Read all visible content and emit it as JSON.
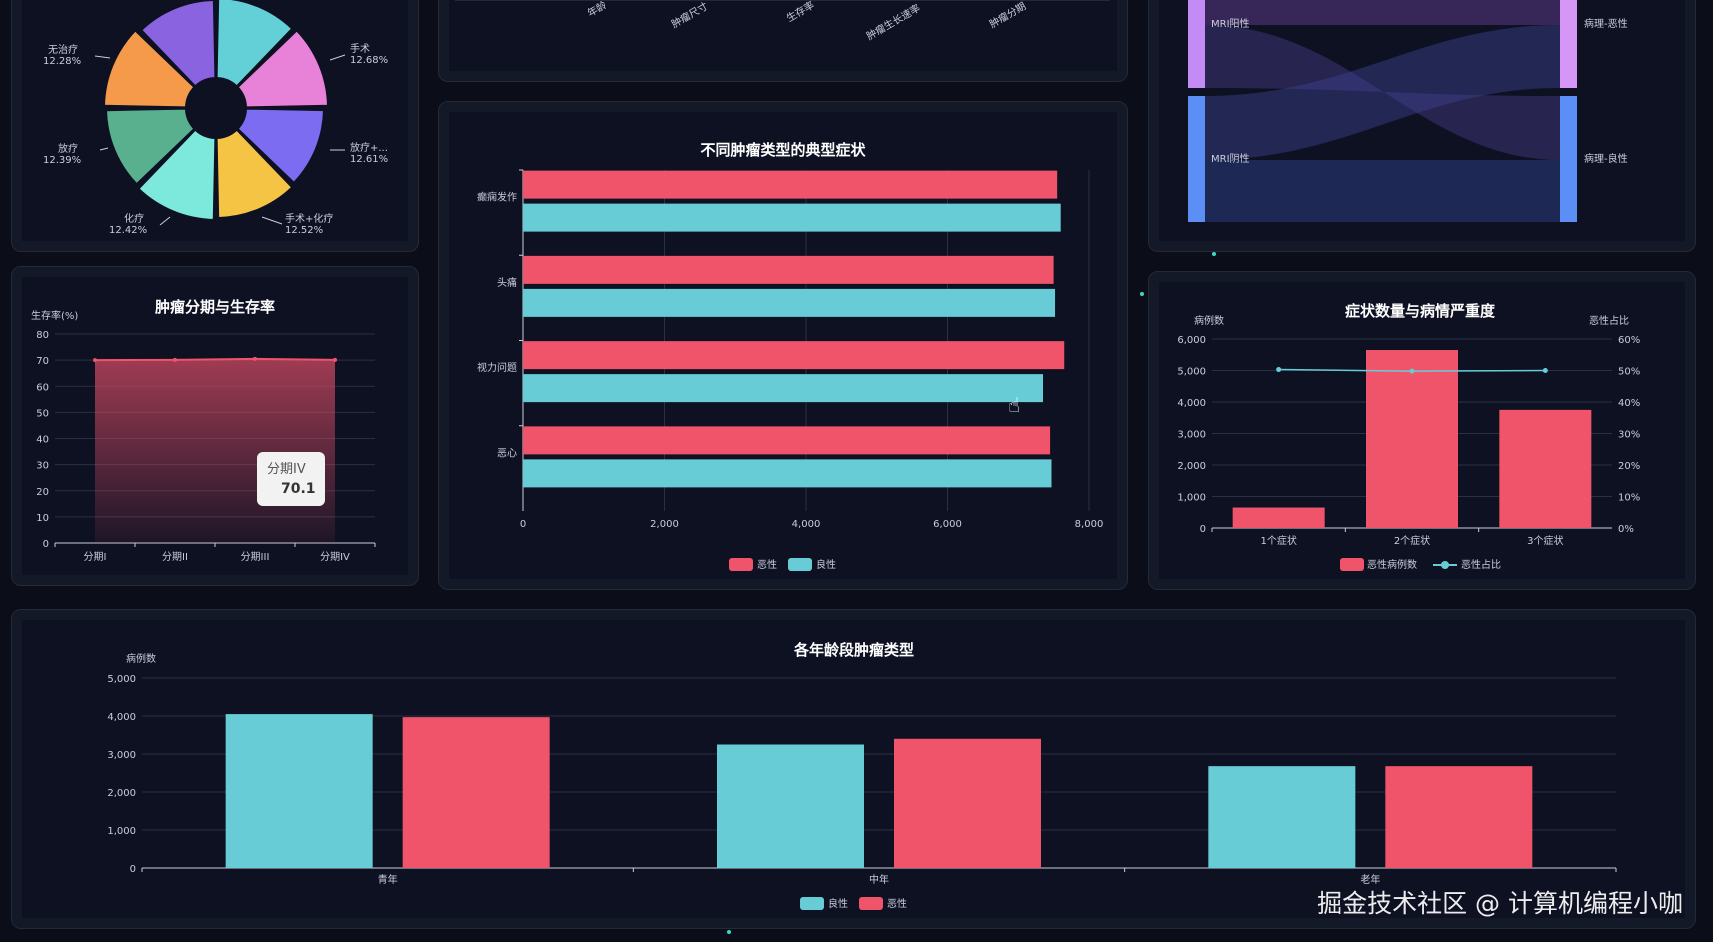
{
  "pie": {
    "labels": [
      {
        "name": "手术",
        "pct": "12.68%"
      },
      {
        "name": "放疗+...",
        "pct": "12.61%"
      },
      {
        "name": "手术+化疗",
        "pct": "12.52%"
      },
      {
        "name": "化疗",
        "pct": "12.42%"
      },
      {
        "name": "放疗",
        "pct": "12.39%"
      },
      {
        "name": "无治疗",
        "pct": "12.28%"
      }
    ],
    "colors": [
      "#63cfd7",
      "#e882d8",
      "#7c6cf2",
      "#f6c445",
      "#7de8dc",
      "#58b08e",
      "#f59a4a",
      "#8a63e0"
    ]
  },
  "top_center": {
    "tick_labels": [
      "年龄",
      "肿瘤尺寸",
      "生存率",
      "肿瘤生长速率",
      "肿瘤分期"
    ]
  },
  "sankey": {
    "left_nodes": [
      "MRI阳性",
      "MRI阴性"
    ],
    "right_nodes": [
      "病理-恶性",
      "病理-良性"
    ],
    "colors": {
      "mri_pos": "#c28cf4",
      "mri_neg": "#5b8ff5",
      "path_mal": "#d596f7",
      "path_ben": "#5b8ff5"
    }
  },
  "survival": {
    "title": "肿瘤分期与生存率",
    "ylabel": "生存率(%)",
    "tooltip": {
      "label": "分期IV",
      "value": "70.1"
    }
  },
  "symptoms": {
    "title": "不同肿瘤类型的典型症状",
    "legend": [
      "恶性",
      "良性"
    ]
  },
  "severity": {
    "title": "症状数量与病情严重度",
    "ylabel_left": "病例数",
    "ylabel_right": "恶性占比",
    "legend": [
      "恶性病例数",
      "恶性占比"
    ]
  },
  "age": {
    "title": "各年龄段肿瘤类型",
    "ylabel": "病例数",
    "legend": [
      "良性",
      "恶性"
    ]
  },
  "watermark": "掘金技术社区 @ 计算机编程小咖",
  "chart_data": [
    {
      "type": "pie",
      "title": "",
      "categories": [
        "手术",
        "放疗+化疗",
        "手术+化疗",
        "化疗",
        "放疗",
        "无治疗"
      ],
      "values": [
        12.68,
        12.61,
        12.52,
        12.42,
        12.39,
        12.28
      ]
    },
    {
      "type": "area",
      "title": "肿瘤分期与生存率",
      "categories": [
        "分期I",
        "分期II",
        "分期III",
        "分期IV"
      ],
      "values": [
        70.0,
        70.1,
        70.5,
        70.1
      ],
      "ylabel": "生存率(%)",
      "ylim": [
        0,
        80
      ],
      "yticks": [
        0,
        10,
        20,
        30,
        40,
        50,
        60,
        70,
        80
      ],
      "color": "#f0546a"
    },
    {
      "type": "bar",
      "orientation": "horizontal",
      "title": "不同肿瘤类型的典型症状",
      "categories": [
        "癫痫发作",
        "头痛",
        "视力问题",
        "恶心"
      ],
      "series": [
        {
          "name": "恶性",
          "values": [
            7550,
            7500,
            7650,
            7450
          ],
          "color": "#f0546a"
        },
        {
          "name": "良性",
          "values": [
            7600,
            7520,
            7350,
            7470
          ],
          "color": "#68ccd6"
        }
      ],
      "xlim": [
        0,
        8000
      ],
      "xticks": [
        0,
        2000,
        4000,
        6000,
        8000
      ],
      "xtick_labels": [
        "0",
        "2,000",
        "4,000",
        "6,000",
        "8,000"
      ]
    },
    {
      "type": "bar",
      "title": "症状数量与病情严重度",
      "categories": [
        "1个症状",
        "2个症状",
        "3个症状"
      ],
      "series": [
        {
          "name": "恶性病例数",
          "type": "bar",
          "values": [
            650,
            5650,
            3750
          ],
          "color": "#f0546a"
        },
        {
          "name": "恶性占比",
          "type": "line",
          "values": [
            50.3,
            49.8,
            50.0
          ],
          "color": "#68ccd6"
        }
      ],
      "ylim": [
        0,
        6000
      ],
      "yticks": [
        0,
        1000,
        2000,
        3000,
        4000,
        5000,
        6000
      ],
      "ytick_labels": [
        "0",
        "1,000",
        "2,000",
        "3,000",
        "4,000",
        "5,000",
        "6,000"
      ],
      "y2lim": [
        0,
        60
      ],
      "y2ticks": [
        0,
        10,
        20,
        30,
        40,
        50,
        60
      ],
      "y2tick_labels": [
        "0%",
        "10%",
        "20%",
        "30%",
        "40%",
        "50%",
        "60%"
      ]
    },
    {
      "type": "bar",
      "title": "各年龄段肿瘤类型",
      "categories": [
        "青年",
        "中年",
        "老年"
      ],
      "series": [
        {
          "name": "良性",
          "values": [
            4050,
            3250,
            2680
          ],
          "color": "#68ccd6"
        },
        {
          "name": "恶性",
          "values": [
            3970,
            3400,
            2680
          ],
          "color": "#f0546a"
        }
      ],
      "ylim": [
        0,
        5000
      ],
      "yticks": [
        0,
        1000,
        2000,
        3000,
        4000,
        5000
      ],
      "ytick_labels": [
        "0",
        "1,000",
        "2,000",
        "3,000",
        "4,000",
        "5,000"
      ]
    }
  ]
}
